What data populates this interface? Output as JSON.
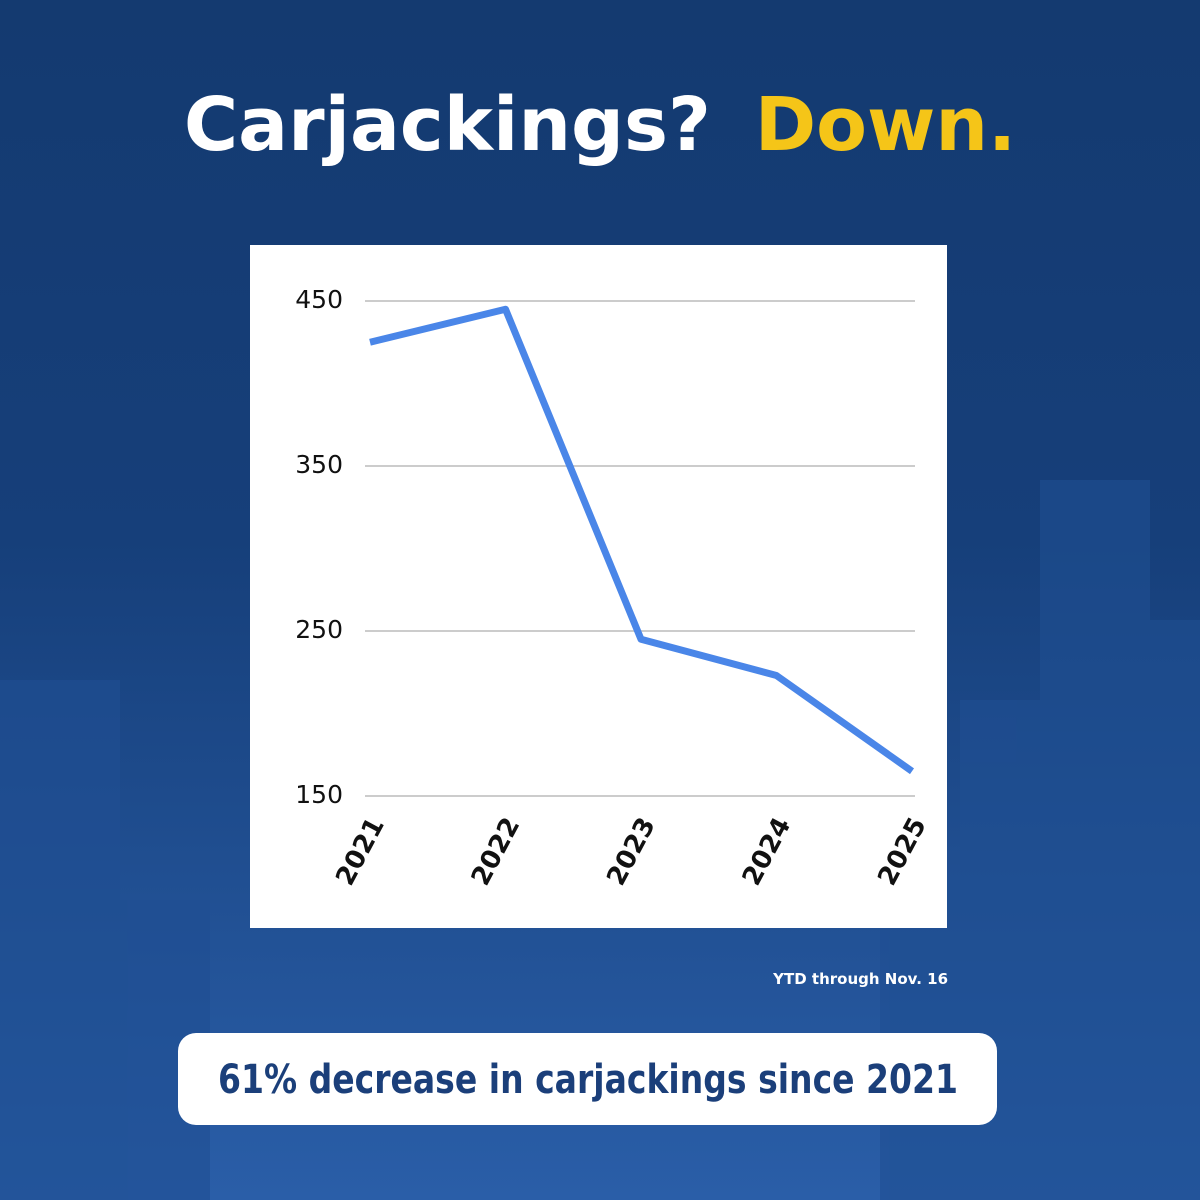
{
  "chart_data": {
    "type": "line",
    "title": "Carjackings?",
    "title_highlight": "Down.",
    "categories": [
      "2021",
      "2022",
      "2023",
      "2024",
      "2025"
    ],
    "series": [
      {
        "name": "Carjackings",
        "color": "#4a86e8",
        "values": [
          425,
          445,
          245,
          223,
          165
        ]
      }
    ],
    "ylim": [
      150,
      450
    ],
    "yticks": [
      150,
      250,
      350,
      450
    ],
    "grid": true,
    "note": "YTD through Nov. 16",
    "callout": "61% decrease in carjackings since 2021"
  }
}
